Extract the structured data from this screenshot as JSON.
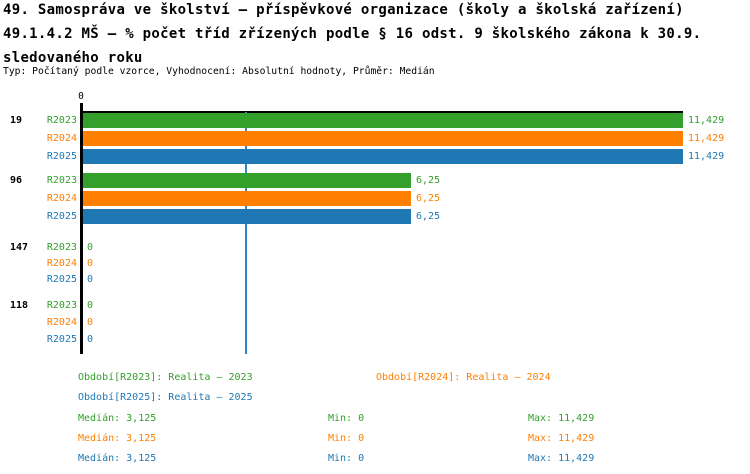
{
  "header": {
    "title_line1": "49. Samospráva ve školství – příspěvkové organizace (školy a školská zařízení)",
    "title_line2": "49.1.4.2 MŠ – % počet tříd zřízených podle § 16 odst. 9 školského zákona k 30.9.",
    "title_line3": "sledovaného roku",
    "meta": "Typ: Počítaný podle vzorce, Vyhodnocení: Absolutní hodnoty, Průměr: Medián"
  },
  "colors": {
    "r2023": "#33A02C",
    "r2024": "#FF7F00",
    "r2025": "#1F78B4",
    "median_line": "#2F86C4",
    "axis": "#000000"
  },
  "chart_data": {
    "type": "bar",
    "orientation": "horizontal",
    "axis": {
      "tick_label": "0",
      "xmin": 0,
      "xmax": 11.429
    },
    "median_line_value": 3.125,
    "series_keys": [
      "r2023",
      "r2024",
      "r2025"
    ],
    "series_labels": [
      "R2023",
      "R2024",
      "R2025"
    ],
    "groups": [
      {
        "label": "19",
        "values": [
          11.429,
          11.429,
          11.429
        ],
        "value_labels": [
          "11,429",
          "11,429",
          "11,429"
        ]
      },
      {
        "label": "96",
        "values": [
          6.25,
          6.25,
          6.25
        ],
        "value_labels": [
          "6,25",
          "6,25",
          "6,25"
        ]
      },
      {
        "label": "147",
        "values": [
          0,
          0,
          0
        ],
        "value_labels": [
          "0",
          "0",
          "0"
        ]
      },
      {
        "label": "118",
        "values": [
          0,
          0,
          0
        ],
        "value_labels": [
          "0",
          "0",
          "0"
        ]
      }
    ],
    "legend": [
      {
        "label": "Období[R2023]: Realita – 2023",
        "series": "r2023"
      },
      {
        "label": "Období[R2024]: Realita – 2024",
        "series": "r2024"
      },
      {
        "label": "Období[R2025]: Realita – 2025",
        "series": "r2025"
      }
    ],
    "stats": [
      {
        "median": "Medián: 3,125",
        "min": "Min: 0",
        "max": "Max: 11,429",
        "series": "r2023"
      },
      {
        "median": "Medián: 3,125",
        "min": "Min: 0",
        "max": "Max: 11,429",
        "series": "r2024"
      },
      {
        "median": "Medián: 3,125",
        "min": "Min: 0",
        "max": "Max: 11,429",
        "series": "r2025"
      }
    ]
  }
}
